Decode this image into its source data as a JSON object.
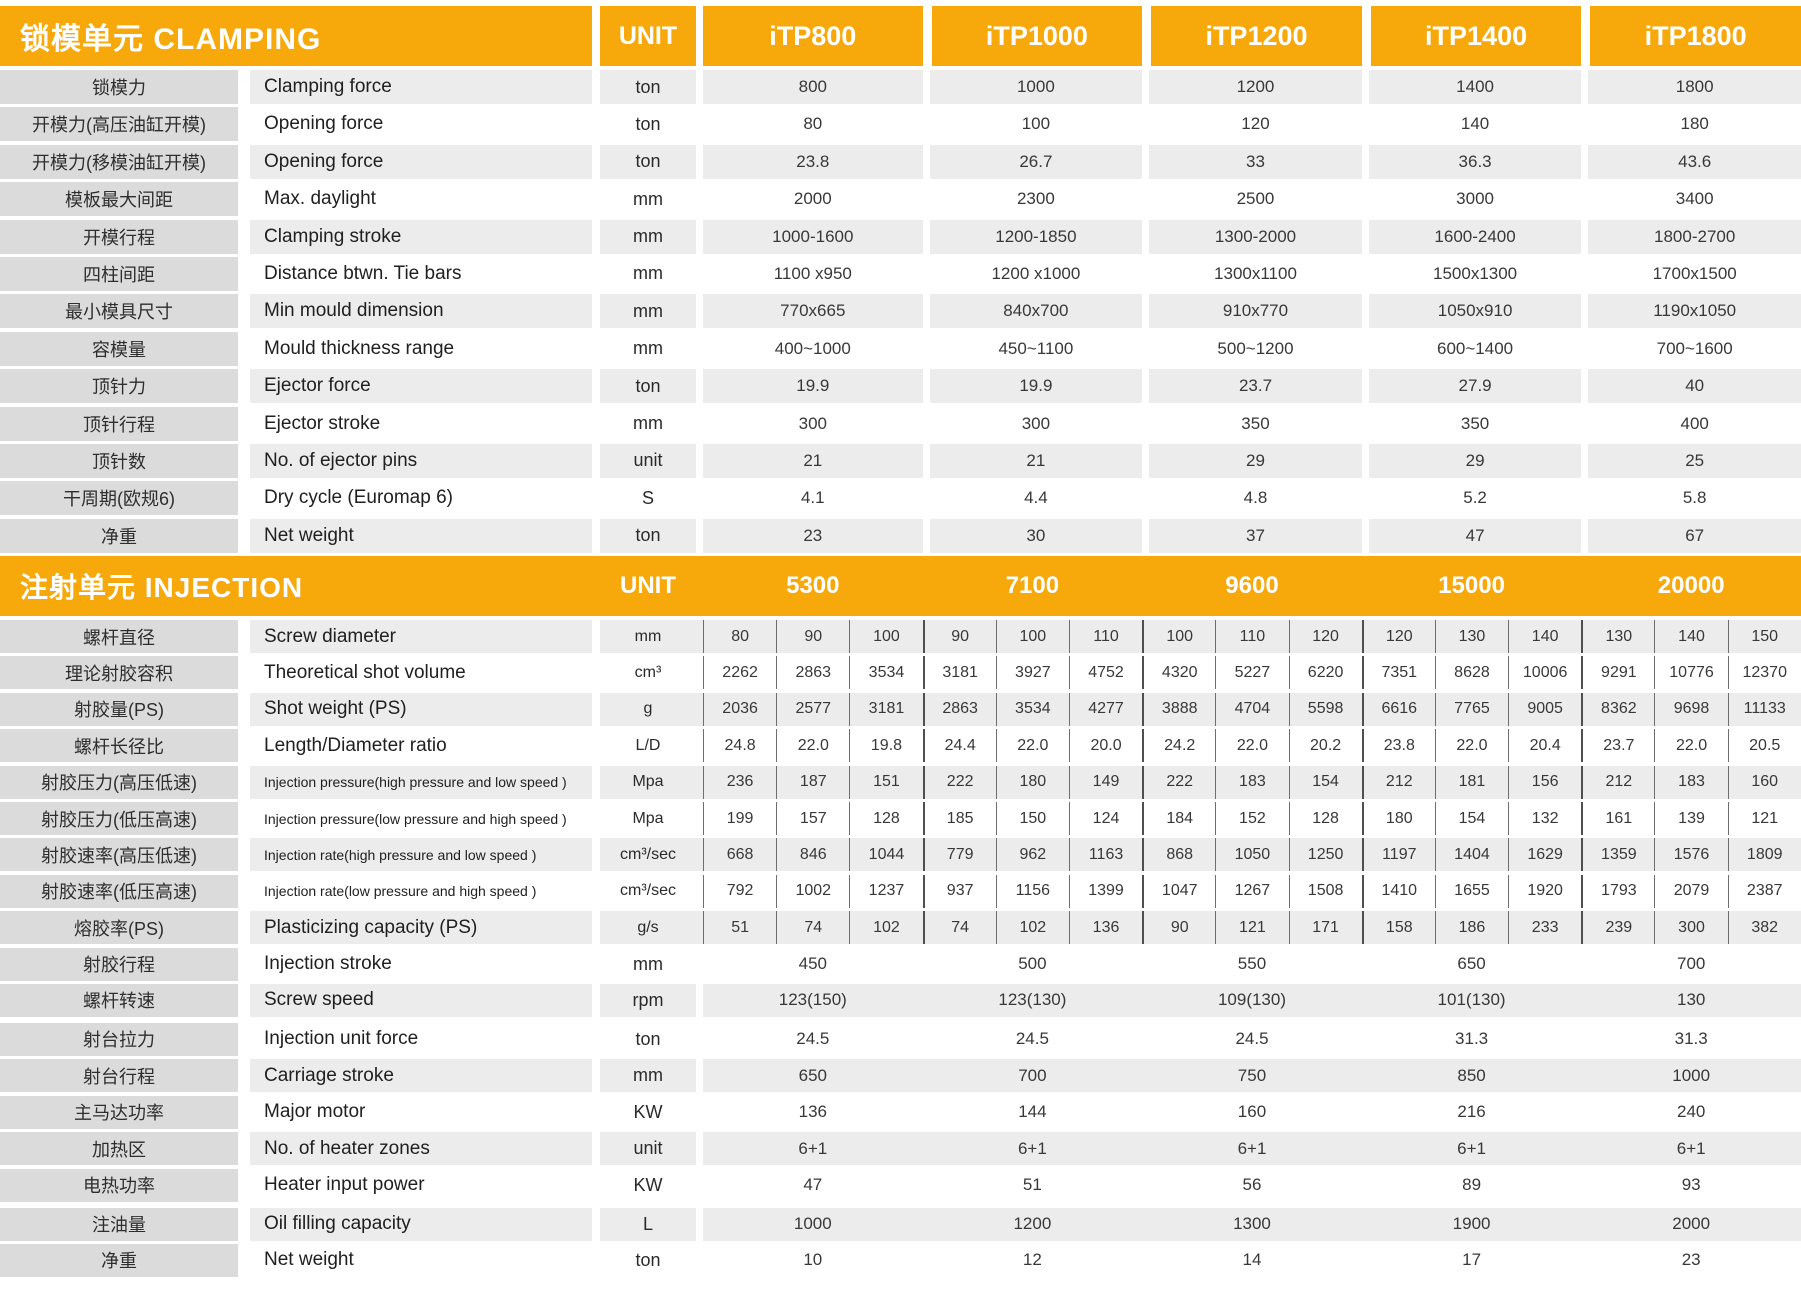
{
  "colors": {
    "header_orange": "#F7A80B",
    "row_stripe": "#ECECEC",
    "label_gray": "#DBDBDB"
  },
  "clamping": {
    "title": "锁模单元 CLAMPING",
    "unit_header": "UNIT",
    "models": [
      "iTP800",
      "iTP1000",
      "iTP1200",
      "iTP1400",
      "iTP1800"
    ],
    "rows": [
      {
        "cn": "锁模力",
        "en": "Clamping force",
        "unit": "ton",
        "values": [
          "800",
          "1000",
          "1200",
          "1400",
          "1800"
        ]
      },
      {
        "cn": "开模力(高压油缸开模)",
        "en": "Opening force",
        "unit": "ton",
        "values": [
          "80",
          "100",
          "120",
          "140",
          "180"
        ]
      },
      {
        "cn": "开模力(移模油缸开模)",
        "en": "Opening force",
        "unit": "ton",
        "values": [
          "23.8",
          "26.7",
          "33",
          "36.3",
          "43.6"
        ]
      },
      {
        "cn": "模板最大间距",
        "en": "Max. daylight",
        "unit": "mm",
        "values": [
          "2000",
          "2300",
          "2500",
          "3000",
          "3400"
        ]
      },
      {
        "cn": "开模行程",
        "en": "Clamping stroke",
        "unit": "mm",
        "values": [
          "1000-1600",
          "1200-1850",
          "1300-2000",
          "1600-2400",
          "1800-2700"
        ]
      },
      {
        "cn": "四柱间距",
        "en": "Distance btwn. Tie bars",
        "unit": "mm",
        "values": [
          "1100 x950",
          "1200 x1000",
          "1300x1100",
          "1500x1300",
          "1700x1500"
        ]
      },
      {
        "cn": "最小模具尺寸",
        "en": "Min mould dimension",
        "unit": "mm",
        "values": [
          "770x665",
          "840x700",
          "910x770",
          "1050x910",
          "1190x1050"
        ]
      },
      {
        "cn": "容模量",
        "en": "Mould thickness range",
        "unit": "mm",
        "values": [
          "400~1000",
          "450~1100",
          "500~1200",
          "600~1400",
          "700~1600"
        ]
      },
      {
        "cn": "顶针力",
        "en": "Ejector force",
        "unit": "ton",
        "values": [
          "19.9",
          "19.9",
          "23.7",
          "27.9",
          "40"
        ]
      },
      {
        "cn": "顶针行程",
        "en": "Ejector stroke",
        "unit": "mm",
        "values": [
          "300",
          "300",
          "350",
          "350",
          "400"
        ]
      },
      {
        "cn": "顶针数",
        "en": "No. of ejector pins",
        "unit": "unit",
        "values": [
          "21",
          "21",
          "29",
          "29",
          "25"
        ]
      },
      {
        "cn": "干周期(欧规6)",
        "en": "Dry cycle (Euromap 6)",
        "unit": "S",
        "values": [
          "4.1",
          "4.4",
          "4.8",
          "5.2",
          "5.8"
        ]
      },
      {
        "cn": "净重",
        "en": "Net weight",
        "unit": "ton",
        "values": [
          "23",
          "30",
          "37",
          "47",
          "67"
        ]
      }
    ]
  },
  "injection": {
    "title": "注射单元 INJECTION",
    "unit_header": "UNIT",
    "models": [
      "5300",
      "7100",
      "9600",
      "15000",
      "20000"
    ],
    "rows": [
      {
        "cn": "螺杆直径",
        "en": "Screw diameter",
        "unit": "mm",
        "groups": [
          [
            "80",
            "90",
            "100"
          ],
          [
            "90",
            "100",
            "110"
          ],
          [
            "100",
            "110",
            "120"
          ],
          [
            "120",
            "130",
            "140"
          ],
          [
            "130",
            "140",
            "150"
          ]
        ]
      },
      {
        "cn": "理论射胶容积",
        "en": "Theoretical shot volume",
        "unit": "cm³",
        "groups": [
          [
            "2262",
            "2863",
            "3534"
          ],
          [
            "3181",
            "3927",
            "4752"
          ],
          [
            "4320",
            "5227",
            "6220"
          ],
          [
            "7351",
            "8628",
            "10006"
          ],
          [
            "9291",
            "10776",
            "12370"
          ]
        ]
      },
      {
        "cn": "射胶量(PS)",
        "en": "Shot weight (PS)",
        "unit": "g",
        "groups": [
          [
            "2036",
            "2577",
            "3181"
          ],
          [
            "2863",
            "3534",
            "4277"
          ],
          [
            "3888",
            "4704",
            "5598"
          ],
          [
            "6616",
            "7765",
            "9005"
          ],
          [
            "8362",
            "9698",
            "11133"
          ]
        ]
      },
      {
        "cn": "螺杆长径比",
        "en": "Length/Diameter ratio",
        "unit": "L/D",
        "groups": [
          [
            "24.8",
            "22.0",
            "19.8"
          ],
          [
            "24.4",
            "22.0",
            "20.0"
          ],
          [
            "24.2",
            "22.0",
            "20.2"
          ],
          [
            "23.8",
            "22.0",
            "20.4"
          ],
          [
            "23.7",
            "22.0",
            "20.5"
          ]
        ]
      },
      {
        "cn": "射胶压力(高压低速)",
        "en": "Injection pressure(high pressure and low speed )",
        "unit": "Mpa",
        "groups": [
          [
            "236",
            "187",
            "151"
          ],
          [
            "222",
            "180",
            "149"
          ],
          [
            "222",
            "183",
            "154"
          ],
          [
            "212",
            "181",
            "156"
          ],
          [
            "212",
            "183",
            "160"
          ]
        ]
      },
      {
        "cn": "射胶压力(低压高速)",
        "en": "Injection pressure(low pressure and high speed )",
        "unit": "Mpa",
        "groups": [
          [
            "199",
            "157",
            "128"
          ],
          [
            "185",
            "150",
            "124"
          ],
          [
            "184",
            "152",
            "128"
          ],
          [
            "180",
            "154",
            "132"
          ],
          [
            "161",
            "139",
            "121"
          ]
        ]
      },
      {
        "cn": "射胶速率(高压低速)",
        "en": "Injection rate(high pressure and low speed )",
        "unit": "cm³/sec",
        "groups": [
          [
            "668",
            "846",
            "1044"
          ],
          [
            "779",
            "962",
            "1163"
          ],
          [
            "868",
            "1050",
            "1250"
          ],
          [
            "1197",
            "1404",
            "1629"
          ],
          [
            "1359",
            "1576",
            "1809"
          ]
        ]
      },
      {
        "cn": "射胶速率(低压高速)",
        "en": "Injection rate(low pressure and high speed )",
        "unit": "cm³/sec",
        "groups": [
          [
            "792",
            "1002",
            "1237"
          ],
          [
            "937",
            "1156",
            "1399"
          ],
          [
            "1047",
            "1267",
            "1508"
          ],
          [
            "1410",
            "1655",
            "1920"
          ],
          [
            "1793",
            "2079",
            "2387"
          ]
        ]
      },
      {
        "cn": "熔胶率(PS)",
        "en": "Plasticizing capacity (PS)",
        "unit": "g/s",
        "groups": [
          [
            "51",
            "74",
            "102"
          ],
          [
            "74",
            "102",
            "136"
          ],
          [
            "90",
            "121",
            "171"
          ],
          [
            "158",
            "186",
            "233"
          ],
          [
            "239",
            "300",
            "382"
          ]
        ]
      },
      {
        "cn": "射胶行程",
        "en": "Injection stroke",
        "unit": "mm",
        "values": [
          "450",
          "500",
          "550",
          "650",
          "700"
        ]
      },
      {
        "cn": "螺杆转速",
        "en": "Screw speed",
        "unit": "rpm",
        "values": [
          "123(150)",
          "123(130)",
          "109(130)",
          "101(130)",
          "130"
        ]
      },
      {
        "cn": "射台拉力",
        "en": "Injection unit force",
        "unit": "ton",
        "values": [
          "24.5",
          "24.5",
          "24.5",
          "31.3",
          "31.3"
        ],
        "gap_before": true
      },
      {
        "cn": "射台行程",
        "en": "Carriage stroke",
        "unit": "mm",
        "values": [
          "650",
          "700",
          "750",
          "850",
          "1000"
        ]
      },
      {
        "cn": "主马达功率",
        "en": "Major motor",
        "unit": "KW",
        "values": [
          "136",
          "144",
          "160",
          "216",
          "240"
        ]
      },
      {
        "cn": "加热区",
        "en": "No. of heater zones",
        "unit": "unit",
        "values": [
          "6+1",
          "6+1",
          "6+1",
          "6+1",
          "6+1"
        ]
      },
      {
        "cn": "电热功率",
        "en": "Heater input power",
        "unit": "KW",
        "values": [
          "47",
          "51",
          "56",
          "89",
          "93"
        ]
      },
      {
        "cn": "注油量",
        "en": "Oil filling capacity",
        "unit": "L",
        "values": [
          "1000",
          "1200",
          "1300",
          "1900",
          "2000"
        ],
        "gap_before": true
      },
      {
        "cn": "净重",
        "en": "Net weight",
        "unit": "ton",
        "values": [
          "10",
          "12",
          "14",
          "17",
          "23"
        ]
      }
    ]
  }
}
